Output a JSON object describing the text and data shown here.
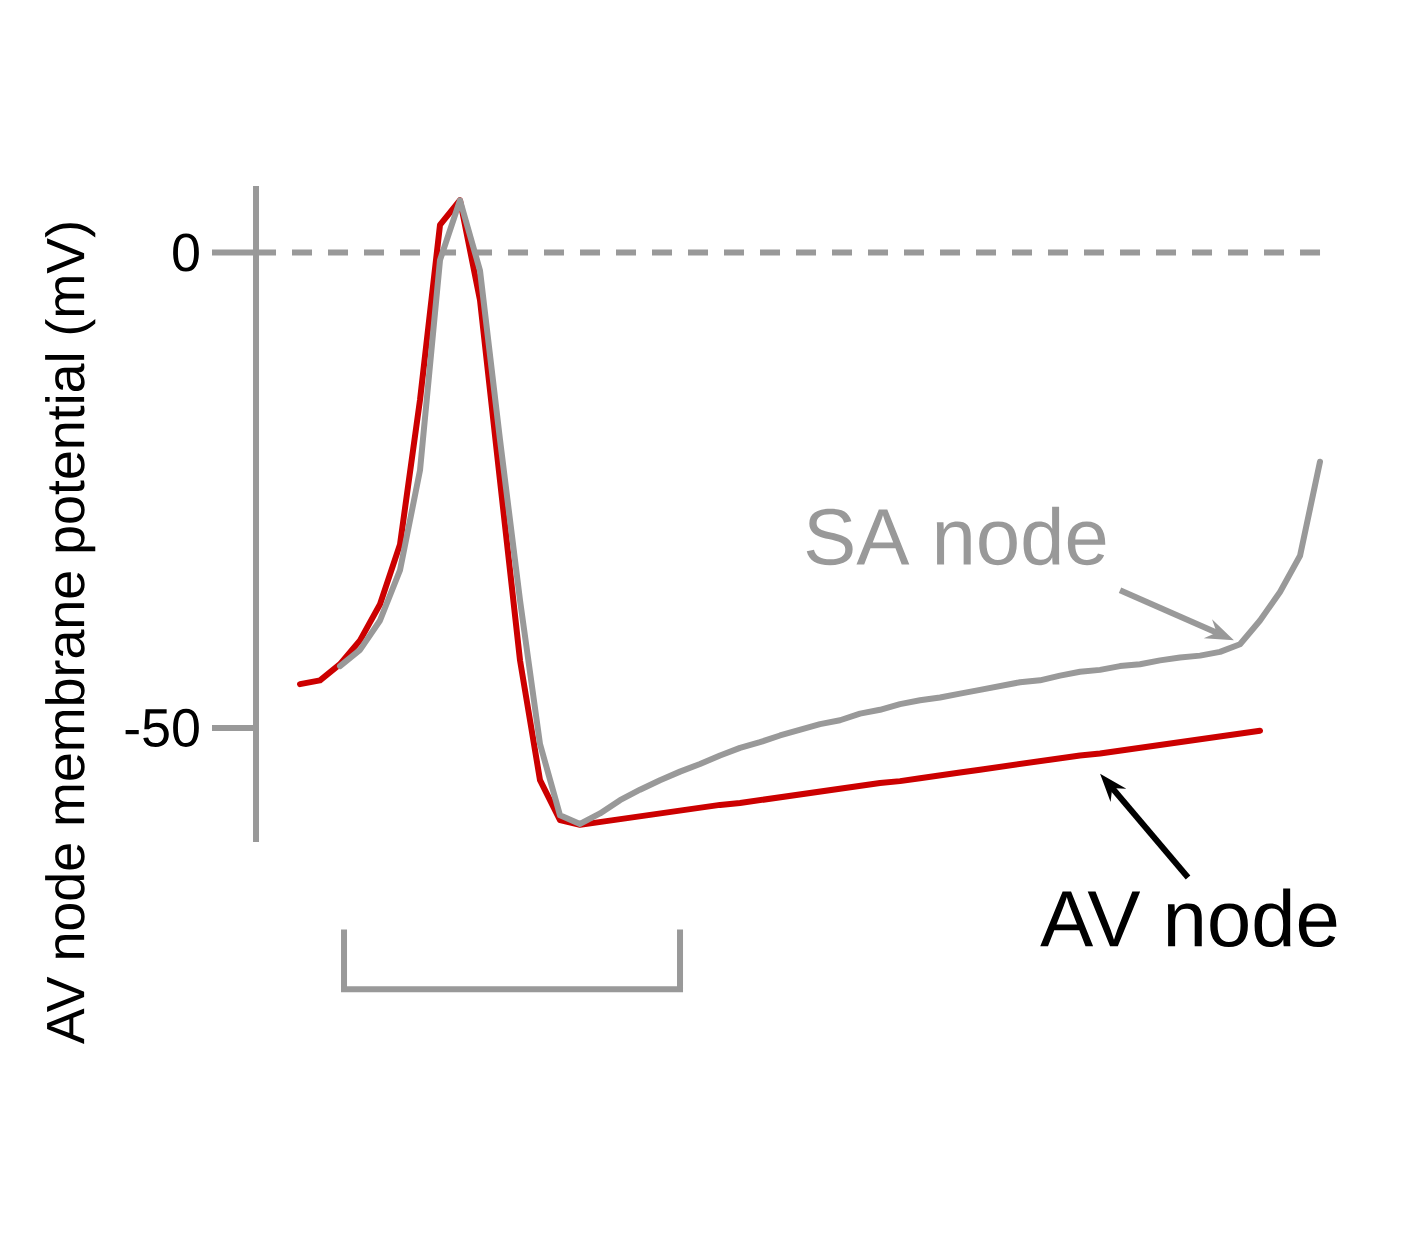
{
  "chart_data": {
    "type": "line",
    "ylabel": "AV node membrane potential (mV)",
    "categories": [
      null,
      null,
      null,
      null,
      null,
      null,
      null,
      null,
      null,
      null,
      null,
      null,
      null,
      null,
      null,
      null,
      null,
      null,
      null,
      null,
      null,
      null,
      null,
      null,
      null,
      null,
      null,
      null,
      null,
      null,
      null,
      null,
      null,
      null,
      null,
      null,
      null,
      null,
      null,
      null,
      null,
      null,
      null,
      null,
      null,
      null,
      null,
      null,
      null,
      null,
      null,
      null
    ],
    "ylim": [
      -62,
      7
    ],
    "yticks": [
      -50,
      0
    ],
    "legend": false,
    "line_style": "solid",
    "marker": "none",
    "ref_lines": [
      {
        "axis": "y",
        "value": 0,
        "color": "#999999",
        "line_style": "dashed"
      }
    ],
    "series": [
      {
        "name": "AV node",
        "color": "#cc0000",
        "values": [
          -45.4,
          -45.0,
          -43.3,
          -40.8,
          -37.0,
          -30.7,
          -15.5,
          2.9,
          5.5,
          -5.0,
          -24.0,
          -42.9,
          -55.5,
          -59.7,
          -60.2,
          -59.9,
          -59.6,
          -59.3,
          -59.0,
          -58.7,
          -58.4,
          -58.1,
          -57.9,
          -57.6,
          -57.3,
          -57.0,
          -56.7,
          -56.4,
          -56.1,
          -55.8,
          -55.6,
          -55.3,
          -55.0,
          -54.7,
          -54.4,
          -54.1,
          -53.8,
          -53.5,
          -53.2,
          -52.9,
          -52.7,
          -52.4,
          -52.1,
          -51.8,
          -51.5,
          -51.2,
          -50.9,
          -50.6,
          -50.3,
          null,
          null,
          null
        ]
      },
      {
        "name": "SA node",
        "color": "#999999",
        "values": [
          null,
          null,
          -43.5,
          -41.8,
          -38.7,
          -33.4,
          -22.9,
          -0.8,
          5.5,
          -1.9,
          -19.7,
          -36.6,
          -51.7,
          -59.2,
          -60.1,
          -59.0,
          -57.6,
          -56.5,
          -55.5,
          -54.6,
          -53.8,
          -52.9,
          -52.1,
          -51.5,
          -50.8,
          -50.2,
          -49.6,
          -49.2,
          -48.5,
          -48.1,
          -47.5,
          -47.1,
          -46.8,
          -46.4,
          -46.0,
          -45.6,
          -45.2,
          -45.0,
          -44.5,
          -44.1,
          -43.9,
          -43.5,
          -43.3,
          -42.9,
          -42.6,
          -42.4,
          -42.0,
          -41.2,
          -38.7,
          -35.7,
          -31.9,
          -22.0
        ]
      }
    ]
  }
}
